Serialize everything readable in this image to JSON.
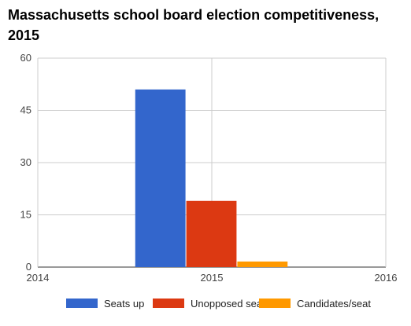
{
  "chart_data": {
    "type": "bar",
    "title": "Massachusetts school board election competitiveness, 2015",
    "xlabel": "",
    "ylabel": "",
    "x_ticks": [
      "2014",
      "2015",
      "2016"
    ],
    "x_range": [
      2014,
      2016
    ],
    "ylim": [
      0,
      60
    ],
    "y_ticks": [
      "0",
      "15",
      "30",
      "45",
      "60"
    ],
    "grid": true,
    "legend_position": "bottom",
    "categories": [
      "2015"
    ],
    "series": [
      {
        "name": "Seats up",
        "color": "#3366cc",
        "values": [
          51
        ]
      },
      {
        "name": "Unopposed seats",
        "color": "#dc3912",
        "values": [
          19
        ]
      },
      {
        "name": "Candidates/seat",
        "color": "#ff9900",
        "values": [
          1.6
        ]
      }
    ]
  }
}
